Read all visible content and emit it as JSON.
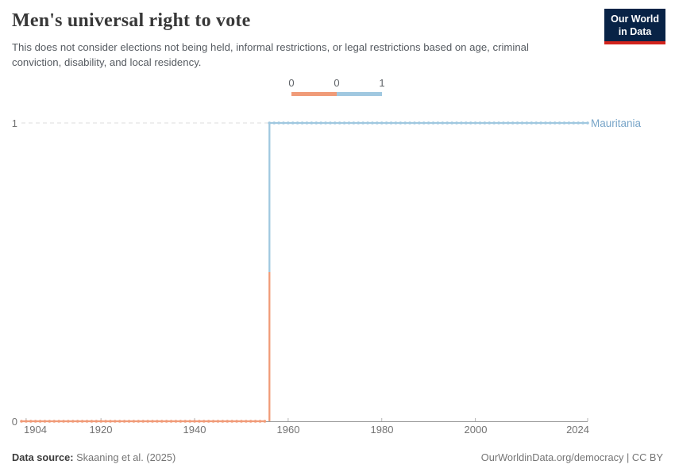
{
  "header": {
    "title": "Men's universal right to vote",
    "subtitle": "This does not consider elections not being held, informal restrictions, or legal restrictions based on age, criminal conviction, disability, and local residency.",
    "logo": {
      "line1": "Our World",
      "line2": "in Data",
      "bg_color": "#082346",
      "accent_color": "#d2231c"
    }
  },
  "legend": {
    "labels": [
      "0",
      "0",
      "1"
    ],
    "bins": [
      {
        "color": "#f09b78"
      },
      {
        "color": "#a0c8e0"
      }
    ]
  },
  "chart_data": {
    "type": "line",
    "title": "Men's universal right to vote",
    "x_range": [
      1903,
      2024
    ],
    "x_ticks": [
      1904,
      1920,
      1940,
      1960,
      1980,
      2000,
      2024
    ],
    "y_ticks": [
      0,
      1
    ],
    "ylim": [
      0,
      1
    ],
    "grid": "dashed horizontal gridline at y=1, solid axis at y=0",
    "legend_position": "top-center",
    "series": [
      {
        "name": "Mauritania",
        "label_color": "#78a5c8",
        "color": "#a0c8e0",
        "steps": [
          {
            "start_year": 1903,
            "end_year": 1955,
            "value": 0,
            "color": "#f09b78"
          },
          {
            "start_year": 1956,
            "end_year": 2024,
            "value": 1,
            "color": "#a0c8e0"
          }
        ]
      }
    ],
    "style": {
      "gridline_color": "#dcdcdc",
      "axis_color": "#9a9a9a",
      "tick_color": "#b5b5b5",
      "tick_label_color": "#737373"
    }
  },
  "footer": {
    "source_label": "Data source:",
    "source_value": " Skaaning et al. (2025)",
    "right_text": "OurWorldinData.org/democracy | CC BY"
  }
}
